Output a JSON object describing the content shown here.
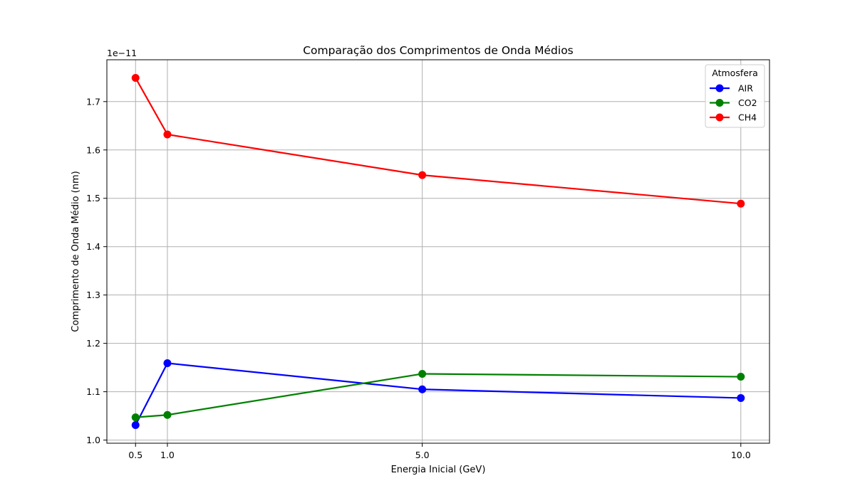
{
  "chart_data": {
    "type": "line",
    "title": "Comparação dos Comprimentos de Onda Médios",
    "xlabel": "Energia Inicial (GeV)",
    "ylabel": "Comprimento de Onda Médio (nm)",
    "y_offset_label": "1e−11",
    "x_ticks": [
      0.5,
      1.0,
      5.0,
      10.0
    ],
    "x_tick_labels": [
      "0.5",
      "1.0",
      "5.0",
      "10.0"
    ],
    "y_ticks": [
      1.0,
      1.1,
      1.2,
      1.3,
      1.4,
      1.5,
      1.6,
      1.7
    ],
    "y_tick_labels": [
      "1.0",
      "1.1",
      "1.2",
      "1.3",
      "1.4",
      "1.5",
      "1.6",
      "1.7"
    ],
    "xlim": [
      0.05,
      10.45
    ],
    "ylim": [
      0.9935,
      1.7865
    ],
    "grid": true,
    "legend": {
      "title": "Atmosfera",
      "position": "top-right"
    },
    "x": [
      0.5,
      1.0,
      5.0,
      10.0
    ],
    "series": [
      {
        "name": "AIR",
        "color": "#0000ff",
        "values": [
          1.031,
          1.159,
          1.105,
          1.087
        ]
      },
      {
        "name": "CO2",
        "color": "#008000",
        "values": [
          1.047,
          1.052,
          1.137,
          1.131
        ]
      },
      {
        "name": "CH4",
        "color": "#ff0000",
        "values": [
          1.749,
          1.632,
          1.548,
          1.489
        ]
      }
    ]
  }
}
